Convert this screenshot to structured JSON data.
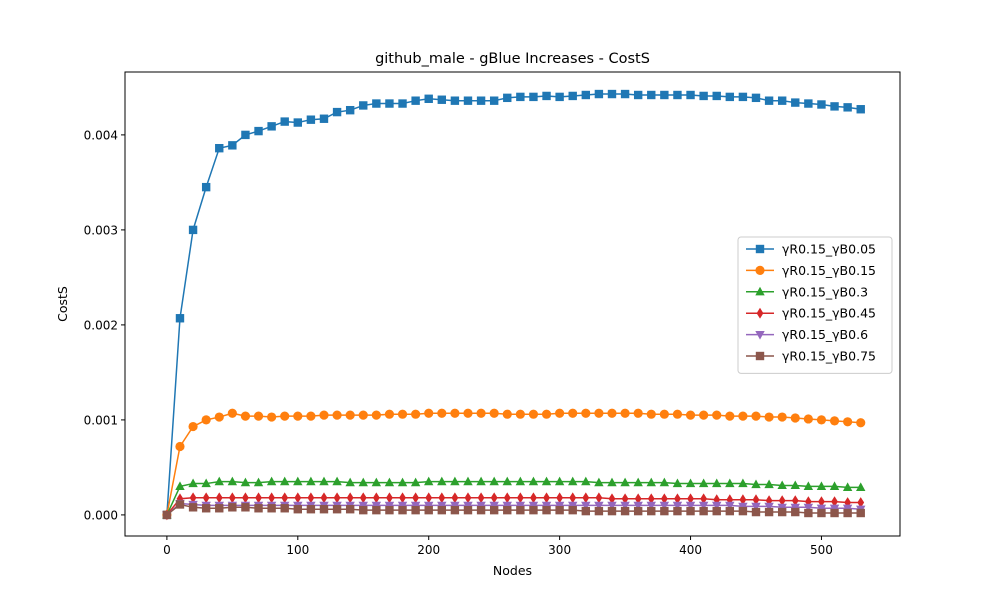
{
  "chart_data": {
    "type": "line",
    "title": "github_male - gBlue Increases - CostS",
    "xlabel": "Nodes",
    "ylabel": "CostS",
    "xlim": [
      -32,
      560
    ],
    "ylim": [
      -0.000222,
      0.004662
    ],
    "xticks": [
      0,
      100,
      200,
      300,
      400,
      500
    ],
    "xtick_labels": [
      "0",
      "100",
      "200",
      "300",
      "400",
      "500"
    ],
    "yticks": [
      0,
      0.001,
      0.002,
      0.003,
      0.004
    ],
    "ytick_labels": [
      "0.000",
      "0.001",
      "0.002",
      "0.003",
      "0.004"
    ],
    "grid": false,
    "legend_position": "center-right",
    "x": [
      0,
      10,
      20,
      30,
      40,
      50,
      60,
      70,
      80,
      90,
      100,
      110,
      120,
      130,
      140,
      150,
      160,
      170,
      180,
      190,
      200,
      210,
      220,
      230,
      240,
      250,
      260,
      270,
      280,
      290,
      300,
      310,
      320,
      330,
      340,
      350,
      360,
      370,
      380,
      390,
      400,
      410,
      420,
      430,
      440,
      450,
      460,
      470,
      480,
      490,
      500,
      510,
      520,
      530
    ],
    "series": [
      {
        "name": "γR0.15_γB0.05",
        "color": "#1f77b4",
        "marker": "square",
        "values": [
          0.0,
          0.00207,
          0.003,
          0.00345,
          0.00386,
          0.00389,
          0.004,
          0.00404,
          0.00409,
          0.00414,
          0.00413,
          0.00416,
          0.00417,
          0.00424,
          0.00426,
          0.00431,
          0.00433,
          0.00433,
          0.00433,
          0.00436,
          0.00438,
          0.00437,
          0.00436,
          0.00436,
          0.00436,
          0.00436,
          0.00439,
          0.0044,
          0.0044,
          0.00441,
          0.0044,
          0.00441,
          0.00442,
          0.00443,
          0.00443,
          0.00443,
          0.00442,
          0.00442,
          0.00442,
          0.00442,
          0.00442,
          0.00441,
          0.00441,
          0.0044,
          0.0044,
          0.00439,
          0.00436,
          0.00436,
          0.00434,
          0.00433,
          0.00432,
          0.0043,
          0.00429,
          0.00427
        ]
      },
      {
        "name": "γR0.15_γB0.15",
        "color": "#ff7f0e",
        "marker": "circle",
        "values": [
          0.0,
          0.00072,
          0.00093,
          0.001,
          0.00103,
          0.00107,
          0.00104,
          0.00104,
          0.00103,
          0.00104,
          0.00104,
          0.00104,
          0.00105,
          0.00105,
          0.00105,
          0.00105,
          0.00105,
          0.00106,
          0.00106,
          0.00106,
          0.00107,
          0.00107,
          0.00107,
          0.00107,
          0.00107,
          0.00107,
          0.00106,
          0.00106,
          0.00106,
          0.00106,
          0.00107,
          0.00107,
          0.00107,
          0.00107,
          0.00107,
          0.00107,
          0.00107,
          0.00106,
          0.00106,
          0.00106,
          0.00105,
          0.00105,
          0.00105,
          0.00104,
          0.00104,
          0.00104,
          0.00103,
          0.00103,
          0.00102,
          0.00101,
          0.001,
          0.00099,
          0.00098,
          0.00097
        ]
      },
      {
        "name": "γR0.15_γB0.3",
        "color": "#2ca02c",
        "marker": "triangle-up",
        "values": [
          0.0,
          0.0003,
          0.00033,
          0.00033,
          0.00035,
          0.00035,
          0.00034,
          0.00034,
          0.00035,
          0.00035,
          0.00035,
          0.00035,
          0.00035,
          0.00035,
          0.00034,
          0.00034,
          0.00034,
          0.00034,
          0.00034,
          0.00034,
          0.00035,
          0.00035,
          0.00035,
          0.00035,
          0.00035,
          0.00035,
          0.00035,
          0.00035,
          0.00035,
          0.00035,
          0.00035,
          0.00035,
          0.00035,
          0.00034,
          0.00034,
          0.00034,
          0.00034,
          0.00034,
          0.00034,
          0.00033,
          0.00033,
          0.00033,
          0.00033,
          0.00033,
          0.00033,
          0.00032,
          0.00032,
          0.00031,
          0.00031,
          0.0003,
          0.0003,
          0.0003,
          0.00029,
          0.00029
        ]
      },
      {
        "name": "γR0.15_γB0.45",
        "color": "#d62728",
        "marker": "diamond",
        "values": [
          0.0,
          0.00017,
          0.00018,
          0.00018,
          0.00018,
          0.00018,
          0.00018,
          0.00018,
          0.00018,
          0.00018,
          0.00018,
          0.00018,
          0.00018,
          0.00018,
          0.00018,
          0.00018,
          0.00018,
          0.00018,
          0.00018,
          0.00018,
          0.00018,
          0.00018,
          0.00018,
          0.00018,
          0.00018,
          0.00018,
          0.00018,
          0.00018,
          0.00018,
          0.00018,
          0.00018,
          0.00018,
          0.00018,
          0.00018,
          0.00017,
          0.00017,
          0.00017,
          0.00017,
          0.00017,
          0.00017,
          0.00017,
          0.00017,
          0.00016,
          0.00016,
          0.00016,
          0.00016,
          0.00015,
          0.00015,
          0.00015,
          0.00014,
          0.00014,
          0.00014,
          0.00013,
          0.00013
        ]
      },
      {
        "name": "γR0.15_γB0.6",
        "color": "#9467bd",
        "marker": "triangle-down",
        "values": [
          0.0,
          0.00012,
          0.00011,
          0.0001,
          0.0001,
          0.0001,
          0.0001,
          0.0001,
          0.0001,
          0.0001,
          0.0001,
          0.0001,
          0.0001,
          0.0001,
          0.0001,
          0.0001,
          0.0001,
          0.0001,
          0.0001,
          0.0001,
          0.0001,
          0.0001,
          0.0001,
          0.0001,
          0.0001,
          0.0001,
          0.0001,
          0.0001,
          0.0001,
          0.0001,
          0.0001,
          0.0001,
          0.0001,
          0.0001,
          0.0001,
          0.0001,
          0.0001,
          0.0001,
          0.0001,
          0.0001,
          0.0001,
          0.0001,
          0.0001,
          0.0001,
          9e-05,
          9e-05,
          9e-05,
          8e-05,
          8e-05,
          8e-05,
          7e-05,
          7e-05,
          7e-05,
          6e-05
        ]
      },
      {
        "name": "γR0.15_γB0.75",
        "color": "#8c564b",
        "marker": "square",
        "values": [
          0.0,
          0.00011,
          8e-05,
          7e-05,
          7e-05,
          8e-05,
          8e-05,
          7e-05,
          7e-05,
          7e-05,
          6e-05,
          6e-05,
          6e-05,
          6e-05,
          6e-05,
          5e-05,
          5e-05,
          5e-05,
          5e-05,
          5e-05,
          5e-05,
          5e-05,
          5e-05,
          5e-05,
          5e-05,
          5e-05,
          5e-05,
          5e-05,
          5e-05,
          5e-05,
          5e-05,
          5e-05,
          4e-05,
          4e-05,
          4e-05,
          4e-05,
          4e-05,
          4e-05,
          4e-05,
          4e-05,
          4e-05,
          4e-05,
          4e-05,
          4e-05,
          4e-05,
          3e-05,
          3e-05,
          3e-05,
          3e-05,
          2e-05,
          2e-05,
          2e-05,
          2e-05,
          2e-05
        ]
      }
    ]
  }
}
